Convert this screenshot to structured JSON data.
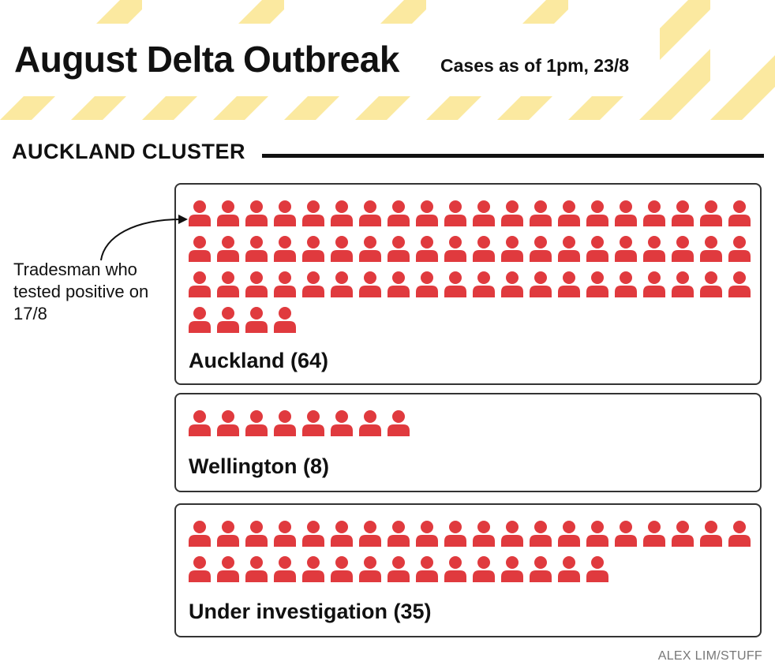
{
  "banner_color": "#fbe9a0",
  "title": "August Delta Outbreak",
  "subtitle": "Cases as of 1pm, 23/8",
  "section_title": "AUCKLAND CLUSTER",
  "icon_name": "person-icon",
  "icon_color": "#e03a3e",
  "annotation": "Tradesman who tested positive on 17/8",
  "credit": "ALEX LIM/STUFF",
  "chart_data": {
    "type": "pictogram",
    "icons_per_row": 20,
    "categories": [
      "Auckland",
      "Wellington",
      "Under investigation"
    ],
    "values": [
      64,
      8,
      35
    ],
    "labels": [
      "Auckland (64)",
      "Wellington (8)",
      "Under investigation (35)"
    ],
    "legend": "none",
    "grid": false
  }
}
